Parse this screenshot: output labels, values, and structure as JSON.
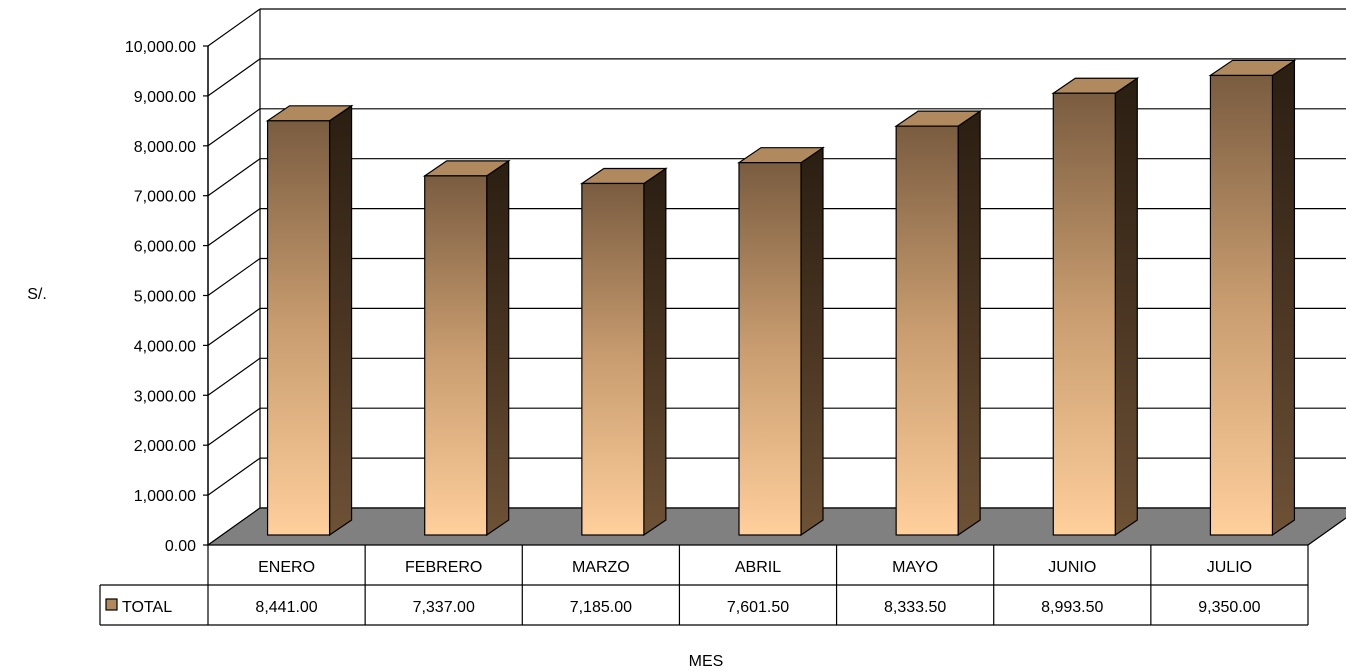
{
  "chart_data": {
    "type": "bar",
    "style": "3d-column-with-data-table",
    "categories": [
      "ENERO",
      "FEBRERO",
      "MARZO",
      "ABRIL",
      "MAYO",
      "JUNIO",
      "JULIO"
    ],
    "series": [
      {
        "name": "TOTAL",
        "values": [
          8441.0,
          7337.0,
          7185.0,
          7601.5,
          8333.5,
          8993.5,
          9350.0
        ],
        "value_labels": [
          "8,441.00",
          "7,337.00",
          "7,185.00",
          "7,601.50",
          "8,333.50",
          "8,993.50",
          "9,350.00"
        ]
      }
    ],
    "ylabel": "S/.",
    "xlabel": "MES",
    "ylim": [
      0,
      10000
    ],
    "y_ticks": [
      "0.00",
      "1,000.00",
      "2,000.00",
      "3,000.00",
      "4,000.00",
      "5,000.00",
      "6,000.00",
      "7,000.00",
      "8,000.00",
      "9,000.00",
      "10,000.00"
    ],
    "grid": true,
    "legend": "data-table-left",
    "colors": {
      "bar_top": "#7a5c40",
      "bar_bottom": "#ffcf9c",
      "bar_side": "#2a1e12",
      "bar_cap": "#b08a5e",
      "floor": "#808080"
    }
  }
}
